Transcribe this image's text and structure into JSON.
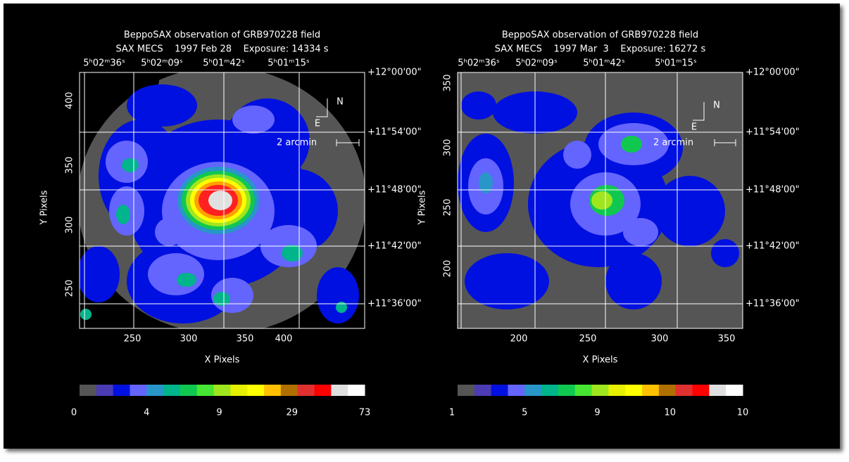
{
  "panels": [
    {
      "title": "BeppoSAX observation of GRB970228 field",
      "subtitle": "SAX MECS    1997 Feb 28    Exposure: 14334 s",
      "ra_labels": [
        "5ʰ02ᵐ36ˢ",
        "5ʰ02ᵐ09ˢ",
        "5ʰ01ᵐ42ˢ",
        "5ʰ01ᵐ15ˢ"
      ],
      "dec_labels": [
        "+12°00'00\"",
        "+11°54'00\"",
        "+11°48'00\"",
        "+11°42'00\"",
        "+11°36'00\""
      ],
      "x_ticks": [
        "250",
        "300",
        "350",
        "400"
      ],
      "y_ticks": [
        "400",
        "350",
        "300",
        "250"
      ],
      "x_label": "X Pixels",
      "y_label": "Y Pixels",
      "compass": {
        "north": "N",
        "east": "E"
      },
      "scale_label": "2 arcmin",
      "colorbar_labels": [
        "0",
        "4",
        "9",
        "29",
        "73"
      ]
    },
    {
      "title": "BeppoSAX observation of GRB970228 field",
      "subtitle": "SAX MECS    1997 Mar  3    Exposure: 16272 s",
      "ra_labels": [
        "5ʰ02ᵐ36ˢ",
        "5ʰ02ᵐ09ˢ",
        "5ʰ01ᵐ42ˢ",
        "5ʰ01ᵐ15ˢ"
      ],
      "dec_labels": [
        "+12°00'00\"",
        "+11°54'00\"",
        "+11°48'00\"",
        "+11°42'00\"",
        "+11°36'00\""
      ],
      "x_ticks": [
        "200",
        "250",
        "300",
        "350"
      ],
      "y_ticks": [
        "350",
        "300",
        "250",
        "200"
      ],
      "x_label": "X Pixels",
      "y_label": "Y Pixels",
      "compass": {
        "north": "N",
        "east": "E"
      },
      "scale_label": "2 arcmin",
      "colorbar_labels": [
        "1",
        "5",
        "9",
        "10",
        "10"
      ]
    }
  ]
}
